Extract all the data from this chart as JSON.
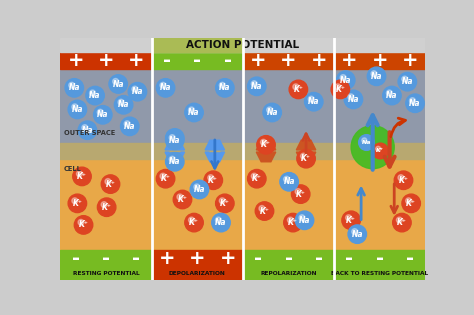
{
  "title": "ACTION POTENTIAL",
  "top_signs": [
    "+",
    "-",
    "+",
    "+"
  ],
  "bottom_signs": [
    "-",
    "+",
    "-",
    "-"
  ],
  "section_labels": [
    "RESTING POTENTIAL",
    "DEPOLARIZATION",
    "REPOLARIZATION",
    "BACK TO RESTING POTENTIAL"
  ],
  "outer_label": "OUTER SPACE",
  "cell_label": "CELL",
  "na_color": "#5599dd",
  "k_color": "#dd4422",
  "top_bar_colors_r": [
    "#cc3300",
    "#77bb22",
    "#cc4400",
    "#cc4400"
  ],
  "bottom_bar_colors_r": [
    "#77bb22",
    "#cc3300",
    "#77bb22",
    "#77bb22"
  ],
  "outer_bg": "#9099aa",
  "cell_bg": "#e8a848",
  "mem_color": "#b8a870",
  "title_bg": "#d0d0d0",
  "title_green_bg": "#aabb55",
  "divider_color": "#ffffff",
  "sign_color_plus": "#ffffff",
  "sign_color_minus": "#ffffff"
}
